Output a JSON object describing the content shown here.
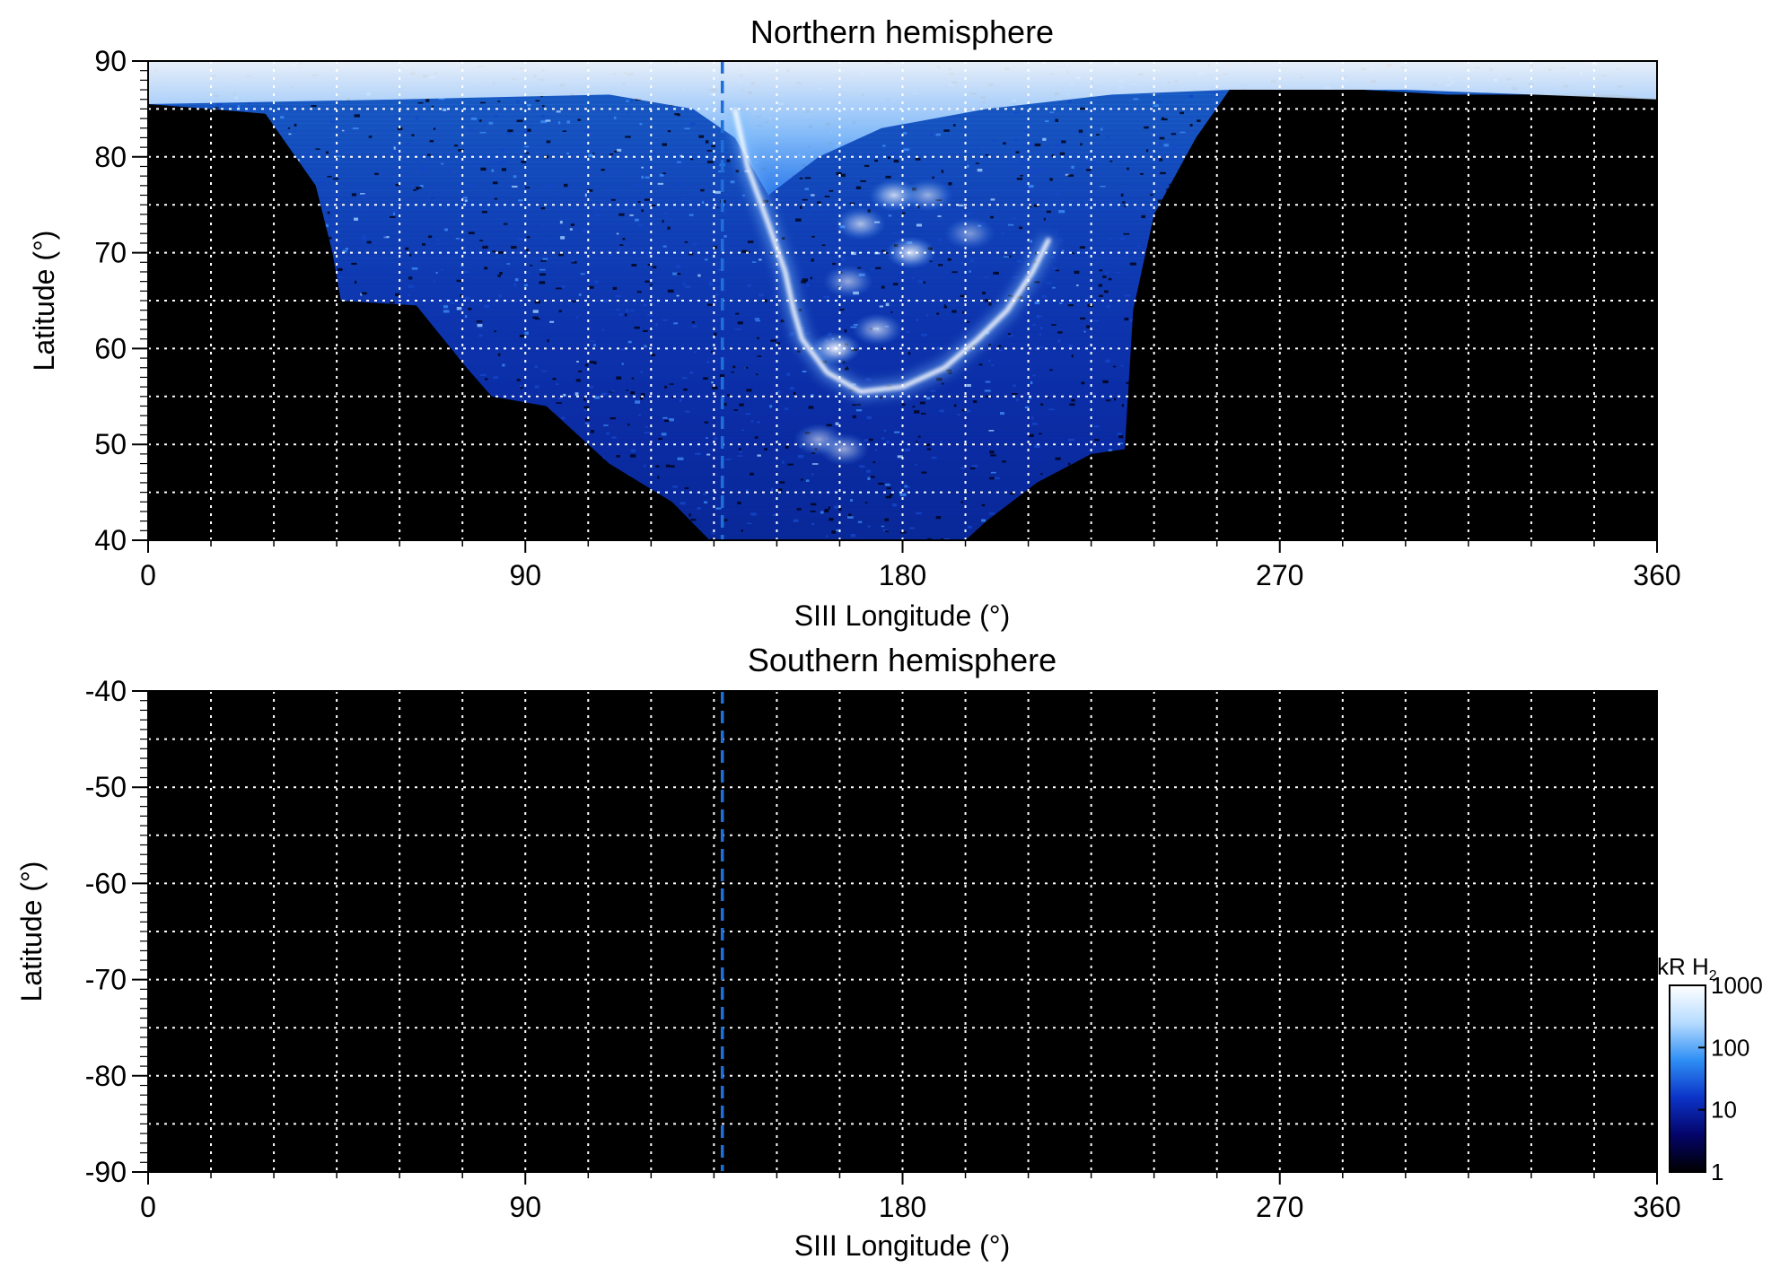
{
  "chart_data": [
    {
      "type": "heatmap",
      "title": "Northern hemisphere",
      "xlabel": "SIII Longitude (°)",
      "ylabel": "Latitude (°)",
      "xlim": [
        0,
        360
      ],
      "ylim": [
        40,
        90
      ],
      "xticks": [
        0,
        90,
        180,
        270,
        360
      ],
      "yticks": [
        40,
        50,
        60,
        70,
        80,
        90
      ],
      "grid": true,
      "grid_x_step": 15,
      "grid_y_step": 5,
      "marker_longitude": 137,
      "marker_color": "#1e6fd9",
      "coverage_lower_boundary": [
        [
          0,
          85.5
        ],
        [
          15,
          85
        ],
        [
          28,
          84.5
        ],
        [
          40,
          77
        ],
        [
          44,
          70
        ],
        [
          46,
          65
        ],
        [
          64,
          64.5
        ],
        [
          76,
          58
        ],
        [
          82,
          55
        ],
        [
          95,
          54
        ],
        [
          110,
          48
        ],
        [
          125,
          44
        ],
        [
          134,
          40
        ],
        [
          195,
          40
        ],
        [
          200,
          42
        ],
        [
          212,
          46
        ],
        [
          225,
          49
        ],
        [
          233,
          49.5
        ],
        [
          235,
          64
        ],
        [
          240,
          74
        ],
        [
          250,
          82
        ],
        [
          258,
          87
        ],
        [
          290,
          87
        ],
        [
          310,
          86.5
        ],
        [
          350,
          86.5
        ],
        [
          360,
          86
        ]
      ],
      "main_oval": [
        [
          140,
          85
        ],
        [
          143,
          79
        ],
        [
          148,
          73
        ],
        [
          152,
          68
        ],
        [
          154,
          64
        ],
        [
          156,
          61
        ],
        [
          162,
          57.5
        ],
        [
          170,
          55.5
        ],
        [
          180,
          56
        ],
        [
          190,
          58
        ],
        [
          198,
          61
        ],
        [
          205,
          64
        ],
        [
          211,
          68
        ],
        [
          215,
          71.5
        ]
      ],
      "bright_spots": [
        [
          164,
          60,
          1.0
        ],
        [
          174,
          62,
          0.7
        ],
        [
          182,
          70,
          0.9
        ],
        [
          170,
          73,
          0.7
        ],
        [
          178,
          76,
          0.8
        ],
        [
          186,
          76,
          0.6
        ],
        [
          167,
          67,
          0.6
        ],
        [
          160,
          50.5,
          0.6
        ],
        [
          166,
          49.5,
          0.6
        ],
        [
          196,
          72,
          0.5
        ]
      ]
    },
    {
      "type": "heatmap",
      "title": "Southern hemisphere",
      "xlabel": "SIII Longitude (°)",
      "ylabel": "Latitude (°)",
      "xlim": [
        0,
        360
      ],
      "ylim": [
        -90,
        -40
      ],
      "xticks": [
        0,
        90,
        180,
        270,
        360
      ],
      "yticks": [
        -40,
        -50,
        -60,
        -70,
        -80,
        -90
      ],
      "grid": true,
      "grid_x_step": 15,
      "grid_y_step": 5,
      "marker_longitude": 137,
      "marker_color": "#1e6fd9"
    }
  ],
  "colorbar": {
    "label_main": "kR H",
    "label_subscript": "2",
    "scale": "log",
    "range": [
      1,
      1000
    ],
    "ticks": [
      "1",
      "10",
      "100",
      "1000"
    ],
    "colors": [
      "#000000",
      "#04046a",
      "#0c34c8",
      "#2f8ff5",
      "#b6dcff",
      "#ffffff"
    ]
  }
}
